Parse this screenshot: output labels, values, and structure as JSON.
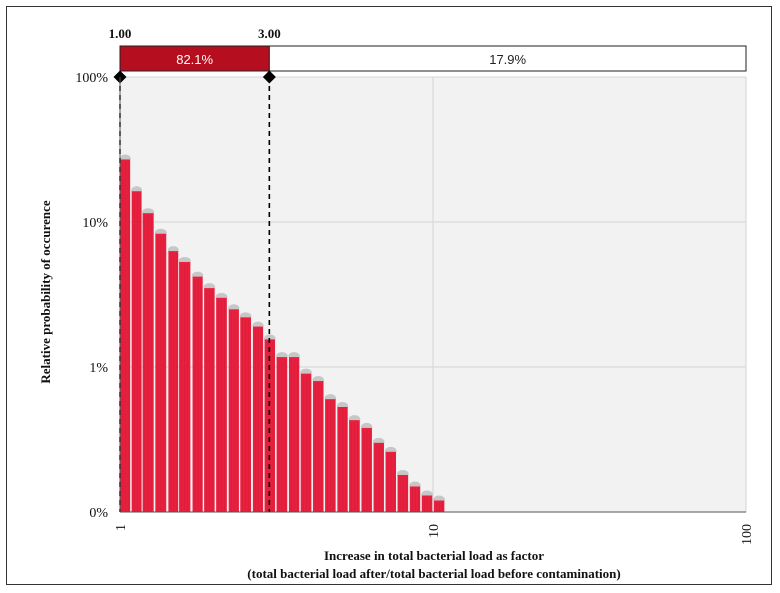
{
  "chart_data": {
    "type": "bar",
    "title": "",
    "xlabel_line1": "Increase in total bacterial load as factor",
    "xlabel_line2": "(total  bacterial load after/total bacterial load before contamination)",
    "ylabel": "Relative probability of occurence",
    "x_scale": "log",
    "xlim": [
      1,
      100
    ],
    "x_ticks": [
      {
        "value": 1,
        "label": "1"
      },
      {
        "value": 10,
        "label": "10"
      },
      {
        "value": 100,
        "label": "100"
      }
    ],
    "y_scale": "log",
    "ylim": [
      0.001,
      1
    ],
    "y_ticks": [
      {
        "value": 0.001,
        "label": "0%"
      },
      {
        "value": 0.01,
        "label": "1%"
      },
      {
        "value": 0.1,
        "label": "10%"
      },
      {
        "value": 1,
        "label": "100%"
      }
    ],
    "bar_color": "#e8203f",
    "bars": [
      {
        "x": 1.04,
        "y": 0.27
      },
      {
        "x": 1.13,
        "y": 0.163
      },
      {
        "x": 1.23,
        "y": 0.115
      },
      {
        "x": 1.35,
        "y": 0.083
      },
      {
        "x": 1.48,
        "y": 0.063
      },
      {
        "x": 1.61,
        "y": 0.053
      },
      {
        "x": 1.77,
        "y": 0.042
      },
      {
        "x": 1.93,
        "y": 0.035
      },
      {
        "x": 2.11,
        "y": 0.03
      },
      {
        "x": 2.31,
        "y": 0.025
      },
      {
        "x": 2.52,
        "y": 0.022
      },
      {
        "x": 2.76,
        "y": 0.019
      },
      {
        "x": 3.01,
        "y": 0.0155
      },
      {
        "x": 3.29,
        "y": 0.0117
      },
      {
        "x": 3.6,
        "y": 0.0117
      },
      {
        "x": 3.93,
        "y": 0.009
      },
      {
        "x": 4.3,
        "y": 0.008
      },
      {
        "x": 4.7,
        "y": 0.006
      },
      {
        "x": 5.14,
        "y": 0.0053
      },
      {
        "x": 5.61,
        "y": 0.0043
      },
      {
        "x": 6.14,
        "y": 0.0038
      },
      {
        "x": 6.71,
        "y": 0.003
      },
      {
        "x": 7.33,
        "y": 0.0026
      },
      {
        "x": 8.01,
        "y": 0.0018
      },
      {
        "x": 8.76,
        "y": 0.0015
      },
      {
        "x": 9.57,
        "y": 0.0013
      },
      {
        "x": 10.46,
        "y": 0.0012
      }
    ],
    "markers": [
      {
        "x": 1.0,
        "label": "1.00"
      },
      {
        "x": 3.0,
        "label": "3.00"
      }
    ],
    "segments": [
      {
        "from": 1,
        "to": 3,
        "label": "82.1%",
        "fill": "#b50f1f"
      },
      {
        "from": 3,
        "to": 100,
        "label": "17.9%",
        "fill": "#ffffff"
      }
    ],
    "plot_background": "#f2f2f2",
    "grid": true
  }
}
